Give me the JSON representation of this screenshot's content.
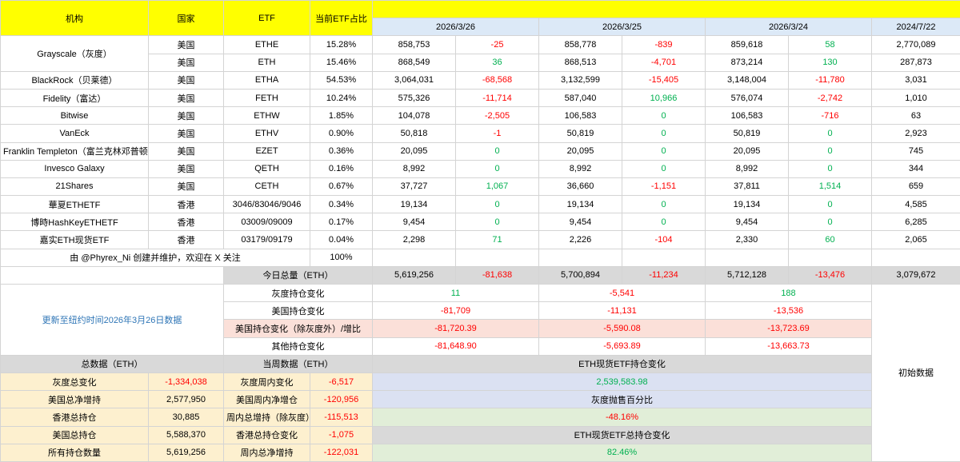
{
  "headers": {
    "institution": "机构",
    "country": "国家",
    "etf": "ETF",
    "share": "当前ETF占比",
    "dates": [
      "2026/3/26",
      "2026/3/25",
      "2026/3/24"
    ],
    "initial_date": "2024/7/22"
  },
  "rows": [
    {
      "name": "Grayscale（灰度）",
      "country": "美国",
      "etf": "ETHE",
      "share": "15.28%",
      "d1": "858,753",
      "c1": "-25",
      "d2": "858,778",
      "c2": "-839",
      "d3": "859,618",
      "c3": "58",
      "init": "2,770,089"
    },
    {
      "name": "",
      "country": "美国",
      "etf": "ETH",
      "share": "15.46%",
      "d1": "868,549",
      "c1": "36",
      "d2": "868,513",
      "c2": "-4,701",
      "d3": "873,214",
      "c3": "130",
      "init": "287,873"
    },
    {
      "name": "BlackRock（贝莱德）",
      "country": "美国",
      "etf": "ETHA",
      "share": "54.53%",
      "d1": "3,064,031",
      "c1": "-68,568",
      "d2": "3,132,599",
      "c2": "-15,405",
      "d3": "3,148,004",
      "c3": "-11,780",
      "init": "3,031"
    },
    {
      "name": "Fidelity（富达）",
      "country": "美国",
      "etf": "FETH",
      "share": "10.24%",
      "d1": "575,326",
      "c1": "-11,714",
      "d2": "587,040",
      "c2": "10,966",
      "d3": "576,074",
      "c3": "-2,742",
      "init": "1,010"
    },
    {
      "name": "Bitwise",
      "country": "美国",
      "etf": "ETHW",
      "share": "1.85%",
      "d1": "104,078",
      "c1": "-2,505",
      "d2": "106,583",
      "c2": "0",
      "d3": "106,583",
      "c3": "-716",
      "init": "63"
    },
    {
      "name": "VanEck",
      "country": "美国",
      "etf": "ETHV",
      "share": "0.90%",
      "d1": "50,818",
      "c1": "-1",
      "d2": "50,819",
      "c2": "0",
      "d3": "50,819",
      "c3": "0",
      "init": "2,923"
    },
    {
      "name": "Franklin Templeton（富兰克林邓普顿）",
      "country": "美国",
      "etf": "EZET",
      "share": "0.36%",
      "d1": "20,095",
      "c1": "0",
      "d2": "20,095",
      "c2": "0",
      "d3": "20,095",
      "c3": "0",
      "init": "745"
    },
    {
      "name": "Invesco Galaxy",
      "country": "美国",
      "etf": "QETH",
      "share": "0.16%",
      "d1": "8,992",
      "c1": "0",
      "d2": "8,992",
      "c2": "0",
      "d3": "8,992",
      "c3": "0",
      "init": "344"
    },
    {
      "name": "21Shares",
      "country": "美国",
      "etf": "CETH",
      "share": "0.67%",
      "d1": "37,727",
      "c1": "1,067",
      "d2": "36,660",
      "c2": "-1,151",
      "d3": "37,811",
      "c3": "1,514",
      "init": "659"
    },
    {
      "name": "華夏ETHETF",
      "country": "香港",
      "etf": "3046/83046/9046",
      "share": "0.34%",
      "d1": "19,134",
      "c1": "0",
      "d2": "19,134",
      "c2": "0",
      "d3": "19,134",
      "c3": "0",
      "init": "4,585"
    },
    {
      "name": "博時HashKeyETHETF",
      "country": "香港",
      "etf": "03009/09009",
      "share": "0.17%",
      "d1": "9,454",
      "c1": "0",
      "d2": "9,454",
      "c2": "0",
      "d3": "9,454",
      "c3": "0",
      "init": "6,285"
    },
    {
      "name": "嘉实ETH现货ETF",
      "country": "香港",
      "etf": "03179/09179",
      "share": "0.04%",
      "d1": "2,298",
      "c1": "71",
      "d2": "2,226",
      "c2": "-104",
      "d3": "2,330",
      "c3": "60",
      "init": "2,065"
    }
  ],
  "credit": {
    "text": "由 @Phyrex_Ni 创建并维护，欢迎在 X 关注",
    "share": "100%"
  },
  "today_total": {
    "label": "今日总量（ETH）",
    "d1": "5,619,256",
    "c1": "-81,638",
    "d2": "5,700,894",
    "c2": "-11,234",
    "d3": "5,712,128",
    "c3": "-13,476",
    "init": "3,079,672"
  },
  "update_note": "更新至纽约时间2026年3月26日数据",
  "change_rows": [
    {
      "label": "灰度持仓变化",
      "v1": "11",
      "v2": "-5,541",
      "v3": "188"
    },
    {
      "label": "美国持仓变化",
      "v1": "-81,709",
      "v2": "-11,131",
      "v3": "-13,536"
    },
    {
      "label": "美国持仓变化（除灰度外）/增比",
      "v1": "-81,720.39",
      "v2": "-5,590.08",
      "v3": "-13,723.69"
    },
    {
      "label": "其他持仓变化",
      "v1": "-81,648.90",
      "v2": "-5,693.89",
      "v3": "-13,663.73"
    }
  ],
  "initial_label": "初始数据",
  "summary": {
    "total_header": "总数据（ETH）",
    "week_header": "当周数据（ETH）",
    "flow_header": "ETH现货ETF持仓变化",
    "rows": [
      {
        "label": "灰度总变化",
        "value": "-1,334,038",
        "wlabel": "灰度周内变化",
        "wvalue": "-6,517",
        "right": "2,539,583.98"
      },
      {
        "label": "美国总净增持",
        "value": "2,577,950",
        "wlabel": "美国周内净增仓",
        "wvalue": "-120,956",
        "right": "灰度抛售百分比"
      },
      {
        "label": "香港总持仓",
        "value": "30,885",
        "wlabel": "周内总增持（除灰度）",
        "wvalue": "-115,513",
        "right": "-48.16%"
      },
      {
        "label": "美国总持仓",
        "value": "5,588,370",
        "wlabel": "香港总持仓变化",
        "wvalue": "-1,075",
        "right": "ETH现货ETF总持仓变化"
      },
      {
        "label": "所有持仓数量",
        "value": "5,619,256",
        "wlabel": "周内总净增持",
        "wvalue": "-122,031",
        "right": "82.46%"
      }
    ]
  },
  "colors": {
    "positive": "#00b050",
    "negative": "#ff0000",
    "header": "#ffff00",
    "date_header": "#dce9f7",
    "link": "#2e75b6"
  }
}
